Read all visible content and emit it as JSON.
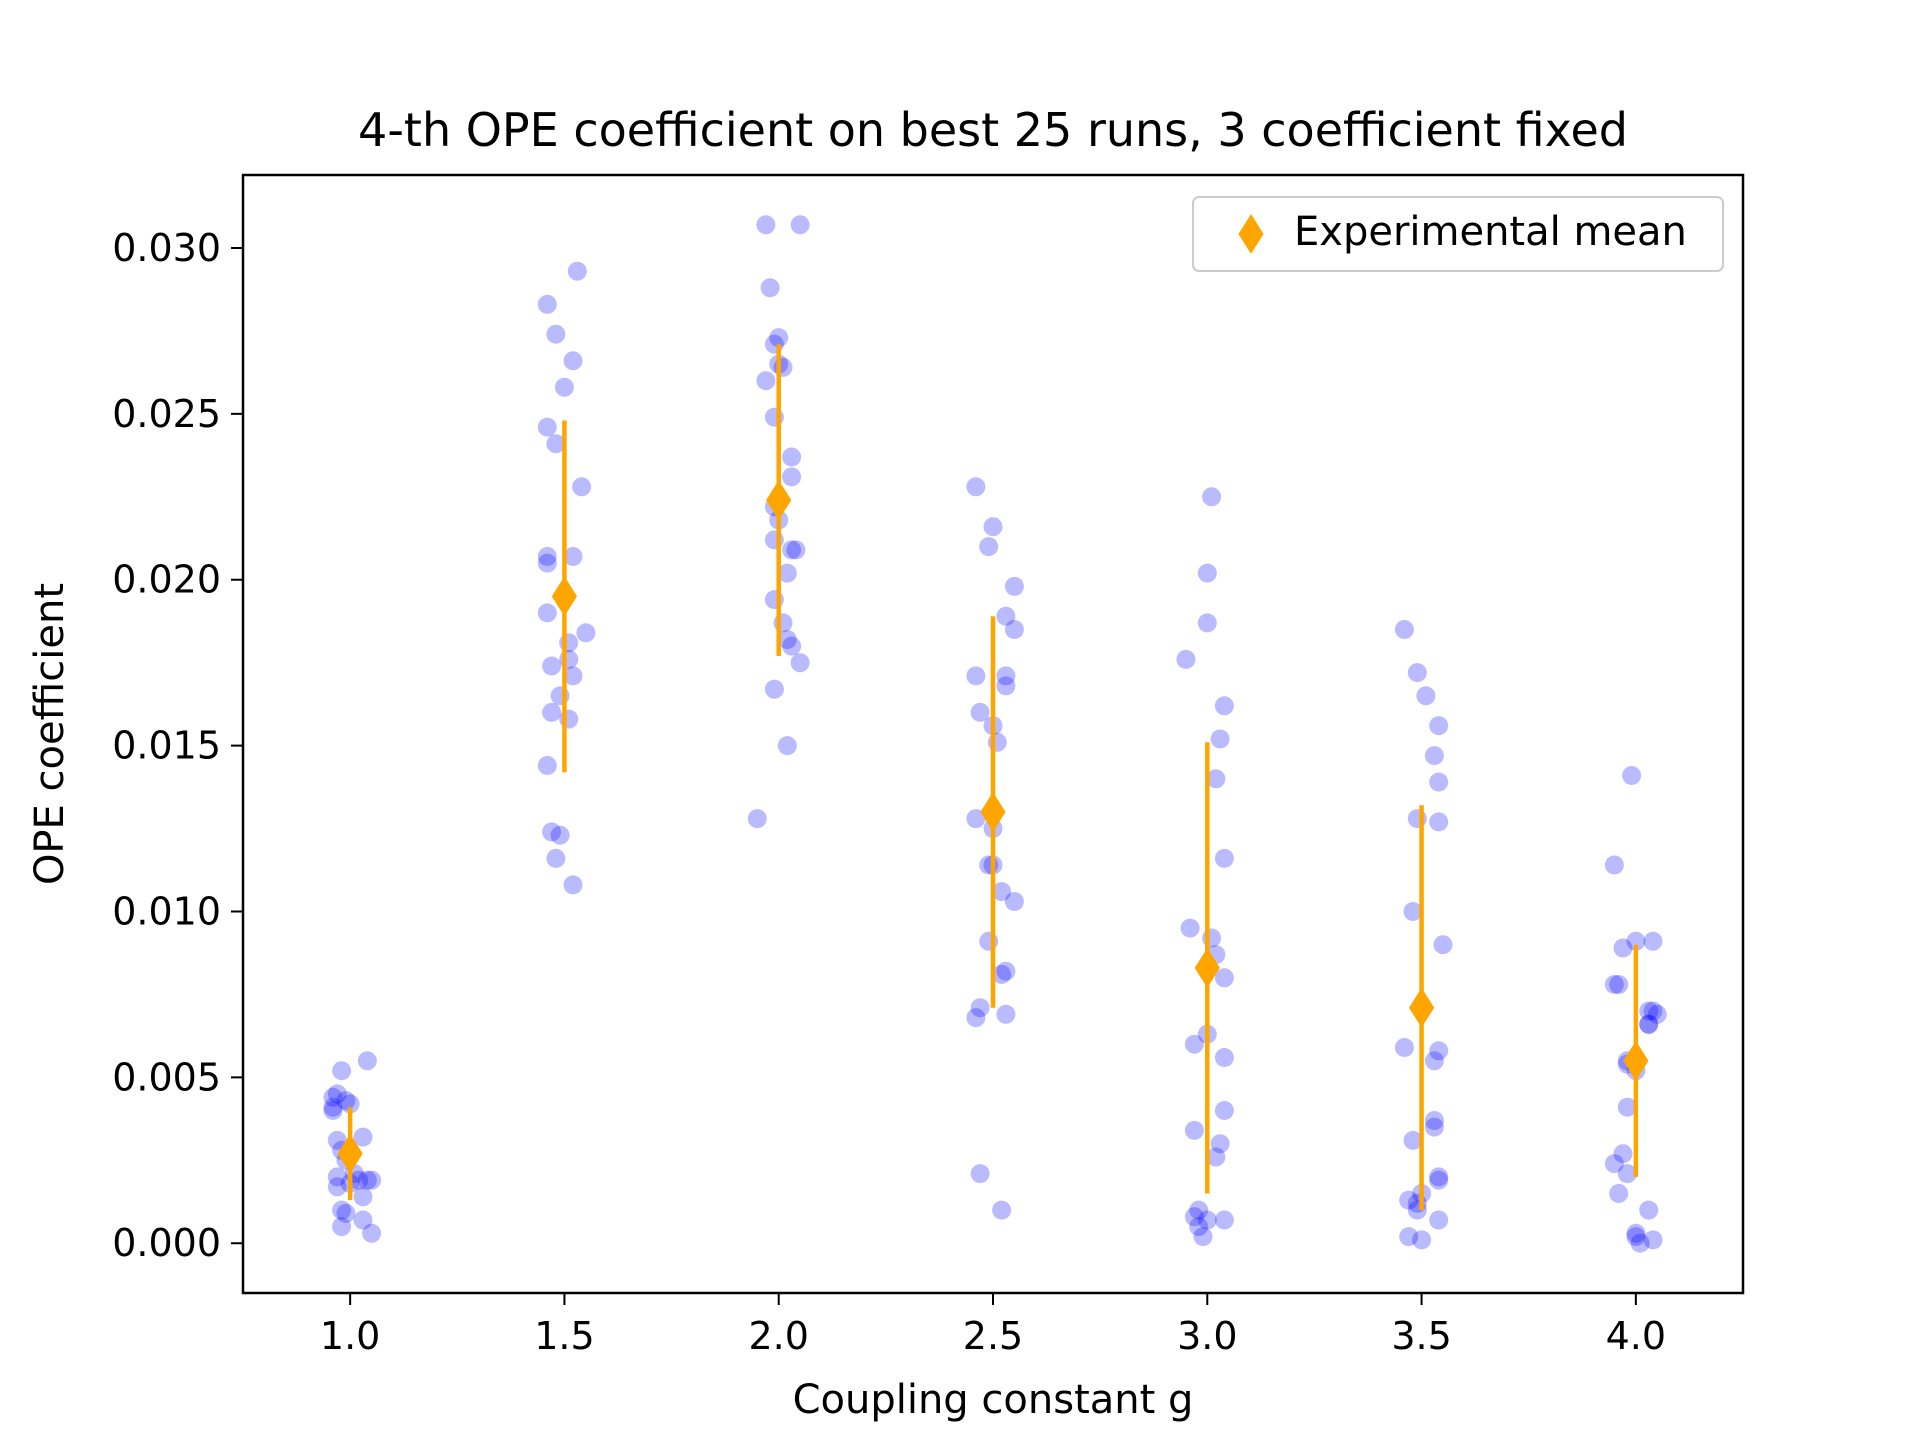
{
  "chart_data": {
    "type": "scatter",
    "title": "4-th OPE coefficient on best 25 runs, 3 coefficient fixed",
    "xlabel": "Coupling constant g",
    "ylabel": "OPE coefficient",
    "xlim": [
      0.75,
      4.25
    ],
    "ylim": [
      -0.0015,
      0.0322
    ],
    "x_ticks": [
      1.0,
      1.5,
      2.0,
      2.5,
      3.0,
      3.5,
      4.0
    ],
    "x_tick_labels": [
      "1.0",
      "1.5",
      "2.0",
      "2.5",
      "3.0",
      "3.5",
      "4.0"
    ],
    "y_ticks": [
      0.0,
      0.005,
      0.01,
      0.015,
      0.02,
      0.025,
      0.03
    ],
    "y_tick_labels": [
      "0.000",
      "0.005",
      "0.010",
      "0.015",
      "0.020",
      "0.025",
      "0.030"
    ],
    "grid": false,
    "legend": {
      "position": "upper right",
      "entries": [
        "Experimental mean"
      ]
    },
    "colors": {
      "runs": "#0000ff",
      "mean": "#ffa500"
    },
    "series": [
      {
        "kind": "runs",
        "points": [
          [
            0.96,
            0.0044
          ],
          [
            0.97,
            0.0045
          ],
          [
            0.99,
            0.0043
          ],
          [
            0.96,
            0.004
          ],
          [
            1.0,
            0.0042
          ],
          [
            0.98,
            0.0052
          ],
          [
            1.04,
            0.0055
          ],
          [
            0.97,
            0.0031
          ],
          [
            1.03,
            0.0032
          ],
          [
            0.98,
            0.0028
          ],
          [
            0.99,
            0.0025
          ],
          [
            0.97,
            0.002
          ],
          [
            0.97,
            0.0017
          ],
          [
            1.02,
            0.0019
          ],
          [
            1.04,
            0.0019
          ],
          [
            1.05,
            0.0019
          ],
          [
            1.03,
            0.0014
          ],
          [
            0.98,
            0.001
          ],
          [
            0.99,
            0.0009
          ],
          [
            1.03,
            0.0007
          ],
          [
            0.98,
            0.0005
          ],
          [
            1.05,
            0.0003
          ],
          [
            1.01,
            0.0021
          ],
          [
            0.96,
            0.0041
          ],
          [
            1.0,
            0.0018
          ],
          [
            1.53,
            0.0293
          ],
          [
            1.46,
            0.0283
          ],
          [
            1.48,
            0.0274
          ],
          [
            1.52,
            0.0266
          ],
          [
            1.5,
            0.0258
          ],
          [
            1.46,
            0.0246
          ],
          [
            1.48,
            0.0241
          ],
          [
            1.54,
            0.0228
          ],
          [
            1.46,
            0.0207
          ],
          [
            1.52,
            0.0207
          ],
          [
            1.46,
            0.0205
          ],
          [
            1.46,
            0.019
          ],
          [
            1.55,
            0.0184
          ],
          [
            1.51,
            0.0181
          ],
          [
            1.51,
            0.0176
          ],
          [
            1.47,
            0.0174
          ],
          [
            1.52,
            0.0171
          ],
          [
            1.49,
            0.0165
          ],
          [
            1.47,
            0.016
          ],
          [
            1.51,
            0.0158
          ],
          [
            1.46,
            0.0144
          ],
          [
            1.47,
            0.0124
          ],
          [
            1.49,
            0.0123
          ],
          [
            1.48,
            0.0116
          ],
          [
            1.52,
            0.0108
          ],
          [
            1.97,
            0.0307
          ],
          [
            2.05,
            0.0307
          ],
          [
            1.98,
            0.0288
          ],
          [
            2.0,
            0.0273
          ],
          [
            1.99,
            0.0271
          ],
          [
            2.0,
            0.0265
          ],
          [
            2.01,
            0.0264
          ],
          [
            1.97,
            0.026
          ],
          [
            1.99,
            0.0249
          ],
          [
            2.03,
            0.0237
          ],
          [
            2.03,
            0.0231
          ],
          [
            1.99,
            0.0222
          ],
          [
            2.0,
            0.0218
          ],
          [
            1.99,
            0.0212
          ],
          [
            2.04,
            0.0209
          ],
          [
            2.03,
            0.0209
          ],
          [
            2.02,
            0.0202
          ],
          [
            1.99,
            0.0194
          ],
          [
            2.01,
            0.0187
          ],
          [
            2.02,
            0.0182
          ],
          [
            2.03,
            0.018
          ],
          [
            2.05,
            0.0175
          ],
          [
            1.99,
            0.0167
          ],
          [
            2.02,
            0.015
          ],
          [
            1.95,
            0.0128
          ],
          [
            2.46,
            0.0228
          ],
          [
            2.5,
            0.0216
          ],
          [
            2.49,
            0.021
          ],
          [
            2.55,
            0.0198
          ],
          [
            2.53,
            0.0189
          ],
          [
            2.55,
            0.0185
          ],
          [
            2.46,
            0.0171
          ],
          [
            2.53,
            0.0171
          ],
          [
            2.53,
            0.0168
          ],
          [
            2.47,
            0.016
          ],
          [
            2.5,
            0.0156
          ],
          [
            2.51,
            0.0151
          ],
          [
            2.46,
            0.0128
          ],
          [
            2.5,
            0.0125
          ],
          [
            2.5,
            0.0114
          ],
          [
            2.49,
            0.0114
          ],
          [
            2.52,
            0.0106
          ],
          [
            2.55,
            0.0103
          ],
          [
            2.49,
            0.0091
          ],
          [
            2.53,
            0.0082
          ],
          [
            2.52,
            0.0081
          ],
          [
            2.47,
            0.0071
          ],
          [
            2.46,
            0.0068
          ],
          [
            2.53,
            0.0069
          ],
          [
            2.47,
            0.0021
          ],
          [
            2.52,
            0.001
          ],
          [
            3.01,
            0.0225
          ],
          [
            3.0,
            0.0202
          ],
          [
            3.0,
            0.0187
          ],
          [
            2.95,
            0.0176
          ],
          [
            3.04,
            0.0162
          ],
          [
            3.03,
            0.0152
          ],
          [
            3.02,
            0.014
          ],
          [
            3.04,
            0.0116
          ],
          [
            2.96,
            0.0095
          ],
          [
            3.01,
            0.0092
          ],
          [
            3.02,
            0.0087
          ],
          [
            3.04,
            0.008
          ],
          [
            3.0,
            0.0063
          ],
          [
            2.97,
            0.006
          ],
          [
            3.04,
            0.0056
          ],
          [
            3.04,
            0.004
          ],
          [
            2.97,
            0.0034
          ],
          [
            3.03,
            0.003
          ],
          [
            3.02,
            0.0026
          ],
          [
            2.98,
            0.001
          ],
          [
            2.97,
            0.0008
          ],
          [
            3.04,
            0.0007
          ],
          [
            3.0,
            0.0007
          ],
          [
            2.98,
            0.0005
          ],
          [
            2.99,
            0.0002
          ],
          [
            3.46,
            0.0185
          ],
          [
            3.49,
            0.0172
          ],
          [
            3.51,
            0.0165
          ],
          [
            3.54,
            0.0156
          ],
          [
            3.53,
            0.0147
          ],
          [
            3.54,
            0.0139
          ],
          [
            3.49,
            0.0128
          ],
          [
            3.54,
            0.0127
          ],
          [
            3.48,
            0.01
          ],
          [
            3.55,
            0.009
          ],
          [
            3.46,
            0.0059
          ],
          [
            3.54,
            0.0058
          ],
          [
            3.53,
            0.0055
          ],
          [
            3.53,
            0.0037
          ],
          [
            3.53,
            0.0035
          ],
          [
            3.48,
            0.0031
          ],
          [
            3.54,
            0.002
          ],
          [
            3.54,
            0.0019
          ],
          [
            3.5,
            0.0015
          ],
          [
            3.47,
            0.0013
          ],
          [
            3.49,
            0.0012
          ],
          [
            3.49,
            0.001
          ],
          [
            3.54,
            0.0007
          ],
          [
            3.47,
            0.0002
          ],
          [
            3.5,
            0.0001
          ],
          [
            3.99,
            0.0141
          ],
          [
            3.95,
            0.0114
          ],
          [
            4.0,
            0.0091
          ],
          [
            4.04,
            0.0091
          ],
          [
            3.97,
            0.0089
          ],
          [
            3.96,
            0.0078
          ],
          [
            3.95,
            0.0078
          ],
          [
            4.03,
            0.007
          ],
          [
            4.04,
            0.007
          ],
          [
            4.05,
            0.0069
          ],
          [
            4.03,
            0.0066
          ],
          [
            4.03,
            0.0066
          ],
          [
            3.98,
            0.0055
          ],
          [
            3.98,
            0.0054
          ],
          [
            4.0,
            0.0052
          ],
          [
            3.98,
            0.0041
          ],
          [
            3.97,
            0.0027
          ],
          [
            3.95,
            0.0024
          ],
          [
            3.98,
            0.0021
          ],
          [
            3.96,
            0.0015
          ],
          [
            4.03,
            0.001
          ],
          [
            4.0,
            0.0003
          ],
          [
            4.04,
            0.0001
          ],
          [
            4.01,
            0.0
          ],
          [
            4.0,
            0.0002
          ]
        ]
      },
      {
        "kind": "mean",
        "name": "Experimental mean",
        "x": [
          1.0,
          1.5,
          2.0,
          2.5,
          3.0,
          3.5,
          4.0
        ],
        "y": [
          0.0027,
          0.0195,
          0.0224,
          0.013,
          0.0083,
          0.0071,
          0.0055
        ],
        "yerr": [
          0.0014,
          0.0053,
          0.0047,
          0.0059,
          0.0068,
          0.0061,
          0.0035
        ]
      }
    ]
  }
}
